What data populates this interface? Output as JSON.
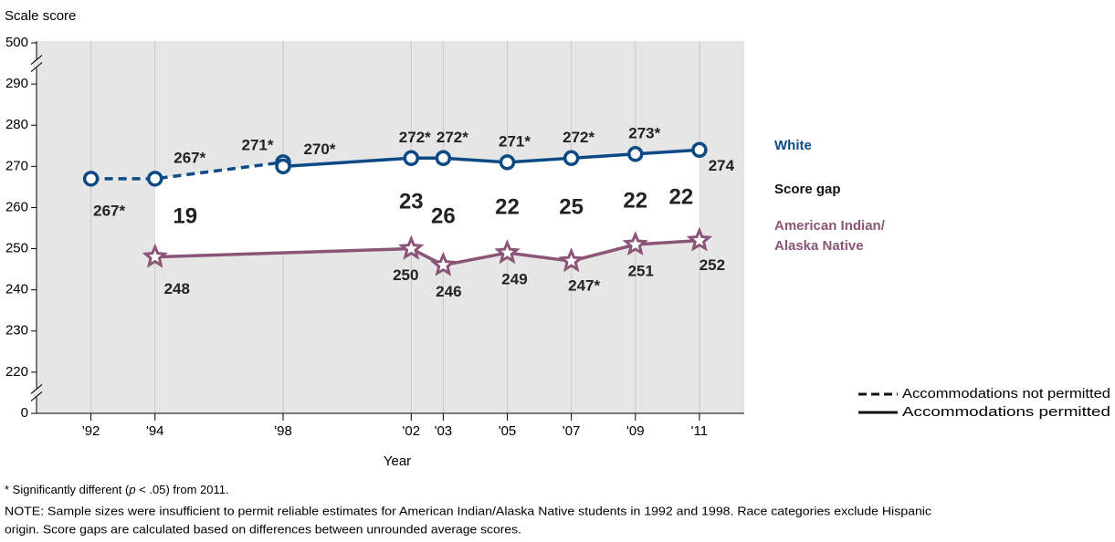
{
  "chart_data": {
    "type": "line",
    "y_axis_title": "Scale score",
    "x_axis_title": "Year",
    "xlim": [
      1990.3,
      2012.4
    ],
    "xticks": [
      {
        "value": 1992,
        "label": "'92"
      },
      {
        "value": 1994,
        "label": "'94"
      },
      {
        "value": 1998,
        "label": "'98"
      },
      {
        "value": 2002,
        "label": "'02"
      },
      {
        "value": 2003,
        "label": "'03"
      },
      {
        "value": 2005,
        "label": "'05"
      },
      {
        "value": 2007,
        "label": "'07"
      },
      {
        "value": 2009,
        "label": "'09"
      },
      {
        "value": 2011,
        "label": "'11"
      }
    ],
    "ylim": [
      0,
      500
    ],
    "yticks": [
      0,
      220,
      230,
      240,
      250,
      260,
      270,
      280,
      290,
      500
    ],
    "y_scale": "broken",
    "y_breaks": [
      [
        0,
        220
      ],
      [
        290,
        500
      ]
    ],
    "grid": true,
    "series": [
      {
        "name": [
          "White"
        ],
        "color": "#0d4a85",
        "marker": "circle",
        "lines": [
          {
            "style": "dashed",
            "x": [
              1992,
              1994,
              1998
            ],
            "values": [
              267,
              267,
              271
            ],
            "value_labels": [
              "267*",
              "267*",
              "271*"
            ]
          },
          {
            "style": "solid",
            "x": [
              1998,
              2002,
              2003,
              2005,
              2007,
              2009,
              2011
            ],
            "values": [
              270,
              272,
              272,
              271,
              272,
              273,
              274
            ],
            "value_labels": [
              "270*",
              "272*",
              "272*",
              "271*",
              "272*",
              "273*",
              "274"
            ]
          }
        ]
      },
      {
        "name": [
          "American Indian/",
          "Alaska Native"
        ],
        "color": "#8a5577",
        "marker": "star",
        "lines": [
          {
            "style": "solid",
            "x": [
              1994,
              2002,
              2003,
              2005,
              2007,
              2009,
              2011
            ],
            "values": [
              248,
              250,
              246,
              249,
              247,
              251,
              252
            ],
            "value_labels": [
              "248",
              "250",
              "246",
              "249",
              "247*",
              "251",
              "252"
            ]
          }
        ]
      }
    ],
    "score_gap": {
      "label": "Score gap",
      "x": [
        1994,
        2002,
        2003,
        2005,
        2007,
        2009,
        2011
      ],
      "values": [
        19,
        23,
        26,
        22,
        25,
        22,
        22
      ]
    },
    "line_styles": [
      {
        "style": "dashed",
        "label": "Accommodations not permitted"
      },
      {
        "style": "solid",
        "label": "Accommodations permitted"
      }
    ],
    "footnote": [
      "* Significantly different (",
      "p",
      " < .05) from 2011."
    ],
    "note": [
      "NOTE: Sample sizes were insufficient to permit reliable estimates for American Indian/Alaska Native students in 1992 and 1998. Race categories exclude Hispanic",
      "origin. Score gaps are calculated based on differences between unrounded average scores."
    ]
  }
}
